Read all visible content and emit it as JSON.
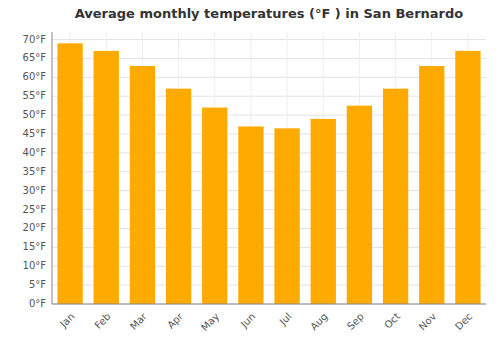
{
  "chart_data": {
    "type": "bar",
    "title": "Average monthly temperatures (°F ) in San Bernardo",
    "categories": [
      "Jan",
      "Feb",
      "Mar",
      "Apr",
      "May",
      "Jun",
      "Jul",
      "Aug",
      "Sep",
      "Oct",
      "Nov",
      "Dec"
    ],
    "values": [
      69,
      67,
      63,
      57,
      52,
      47,
      46.5,
      49,
      52.5,
      57,
      63,
      67
    ],
    "color": "#FFAA00",
    "ylim": [
      0,
      72
    ],
    "yticks": [
      {
        "value": 0,
        "label": "0°F"
      },
      {
        "value": 5,
        "label": "5°F"
      },
      {
        "value": 10,
        "label": "10°F"
      },
      {
        "value": 15,
        "label": "15°F"
      },
      {
        "value": 20,
        "label": "20°F"
      },
      {
        "value": 25,
        "label": "25°F"
      },
      {
        "value": 30,
        "label": "30°F"
      },
      {
        "value": 35,
        "label": "35°F"
      },
      {
        "value": 40,
        "label": "40°F"
      },
      {
        "value": 45,
        "label": "45°F"
      },
      {
        "value": 50,
        "label": "50°F"
      },
      {
        "value": 55,
        "label": "55°F"
      },
      {
        "value": 60,
        "label": "60°F"
      },
      {
        "value": 65,
        "label": "65°F"
      },
      {
        "value": 70,
        "label": "70°F"
      }
    ],
    "grid": true
  }
}
